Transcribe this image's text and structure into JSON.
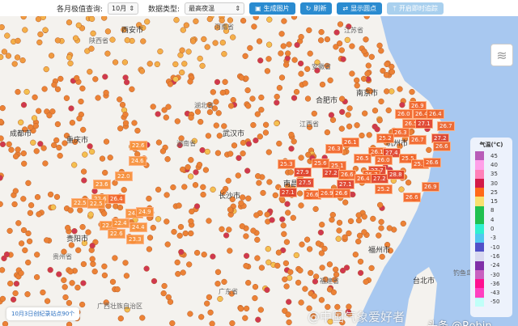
{
  "toolbar": {
    "month_label": "各月极值查询:",
    "month_value": "10月",
    "type_label": "数据类型:",
    "type_value": "最高夜温",
    "btn_image": "生成图片",
    "btn_refresh": "刷新",
    "btn_dots": "显示圆点",
    "btn_track": "开启即时追踪"
  },
  "cities": [
    "西安市",
    "成都市",
    "重庆市",
    "武汉市",
    "合肥市",
    "南京市",
    "上海市",
    "杭州市",
    "南昌市",
    "长沙市",
    "贵阳市",
    "福州市",
    "台北市",
    "广州市"
  ],
  "provinces": [
    "陕西省",
    "河南省",
    "湖北省",
    "安徽省",
    "江苏省",
    "江西省",
    "湖南省",
    "福建省",
    "贵州省",
    "广西壮族自治区",
    "广东省",
    "台湾省",
    "钓鱼岛"
  ],
  "records": [
    "26.9",
    "26.0",
    "26.4",
    "26.4",
    "26.5",
    "27.1",
    "26.7",
    "26.3",
    "25.2",
    "26.1",
    "26.7",
    "27.2",
    "26.6",
    "26.3",
    "26.1",
    "27.4",
    "26.5",
    "25.5",
    "26.0",
    "25.3",
    "25.6",
    "25.1",
    "25.7",
    "26.6",
    "27.9",
    "27.2",
    "26.6",
    "27.7",
    "25.7",
    "26.4",
    "27.2",
    "28.8",
    "27.5",
    "27.1",
    "25.2",
    "26.9",
    "27.1",
    "26.6",
    "26.9",
    "26.6",
    "26.6",
    "22.6",
    "24.6",
    "22.0",
    "23.6",
    "22.6",
    "26.4",
    "22.5",
    "22.5",
    "24.3",
    "24.9",
    "22.4",
    "22.4",
    "24.4",
    "22.6",
    "23.3"
  ],
  "legend": {
    "title": "气温(°C)",
    "items": [
      {
        "v": "45",
        "c": "#b85cb8"
      },
      {
        "v": "40",
        "c": "#ffa0e8"
      },
      {
        "v": "35",
        "c": "#ff80b8"
      },
      {
        "v": "30",
        "c": "#d21a48"
      },
      {
        "v": "25",
        "c": "#ff6a1a"
      },
      {
        "v": "15",
        "c": "#f8e070"
      },
      {
        "v": "8",
        "c": "#20c050"
      },
      {
        "v": "4",
        "c": "#20c050"
      },
      {
        "v": "0",
        "c": "#30f0d0"
      },
      {
        "v": "-3",
        "c": "#50c8f0"
      },
      {
        "v": "-10",
        "c": "#5050c8"
      },
      {
        "v": "-16",
        "c": "#d8d8f0"
      },
      {
        "v": "-24",
        "c": "#8030a8"
      },
      {
        "v": "-30",
        "c": "#c860c0"
      },
      {
        "v": "-36",
        "c": "#ff1090"
      },
      {
        "v": "-43",
        "c": "#ff40c0"
      },
      {
        "v": "-50",
        "c": "#c0fff8"
      }
    ]
  },
  "note": "10月3日创纪录站点90个",
  "watermark": "@中国气象爱好者",
  "credit": "头条 @Robin",
  "colors": {
    "sea": "#a8c8f0",
    "land": "#f4f2ee",
    "dot": "#f08a3a",
    "button": "#2a8bd0"
  }
}
